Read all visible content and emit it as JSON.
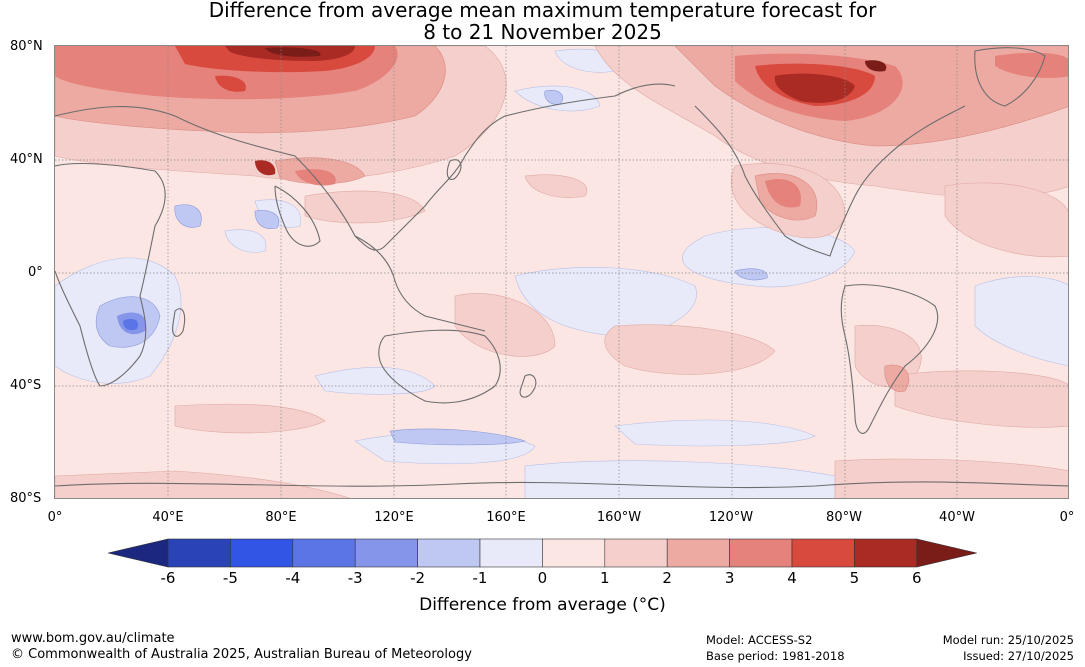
{
  "title": {
    "line1": "Difference from average mean maximum temperature forecast for",
    "line2": "8 to 21 November 2025"
  },
  "map": {
    "lat_labels": [
      "80°N",
      "40°N",
      "0°",
      "40°S",
      "80°S"
    ],
    "lon_labels": [
      "0°",
      "40°E",
      "80°E",
      "120°E",
      "160°E",
      "160°W",
      "120°W",
      "80°W",
      "40°W",
      "0°"
    ]
  },
  "colorbar": {
    "title": "Difference from average (°C)",
    "labels": [
      "-6",
      "-5",
      "-4",
      "-3",
      "-2",
      "-1",
      "0",
      "1",
      "2",
      "3",
      "4",
      "5",
      "6"
    ],
    "colors": [
      "#1c2880",
      "#2a44b8",
      "#3255e6",
      "#5b75e6",
      "#8596ea",
      "#bfc8f2",
      "#e8eafa",
      "#fbe6e3",
      "#f5cfcb",
      "#edaaa3",
      "#e5827b",
      "#d94a3e",
      "#aa2a24",
      "#7a1c18"
    ]
  },
  "footer": {
    "website": "www.bom.gov.au/climate",
    "copyright": "© Commonwealth of Australia 2025, Australian Bureau of Meteorology",
    "model": "Model: ACCESS-S2",
    "base_period": "Base period: 1981-2018",
    "model_run": "Model run: 25/10/2025",
    "issued": "Issued: 27/10/2025"
  }
}
